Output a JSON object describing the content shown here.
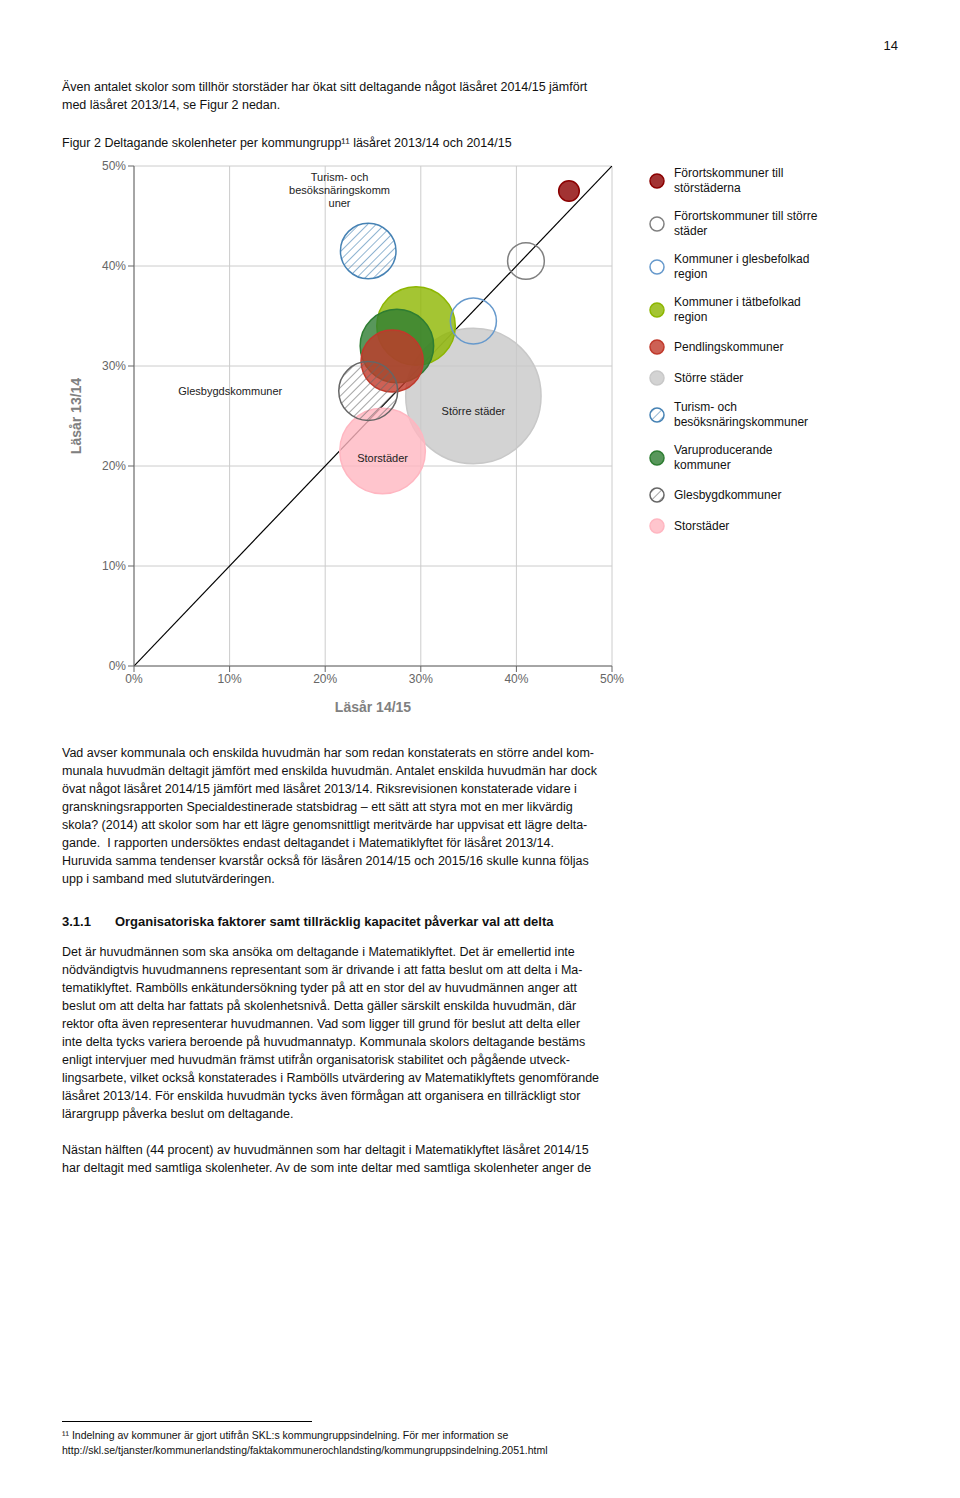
{
  "page_number": "14",
  "intro_text": "Även antalet skolor som tillhör storstäder har ökat sitt deltagande något läsåret 2014/15 jämfört\nmed läsåret 2013/14, se Figur 2 nedan.",
  "body1": "Vad avser kommunala och enskilda huvudmän har som redan konstaterats en större andel kom-\nmunala huvudmän deltagit jämfört med enskilda huvudmän. Antalet enskilda huvudmän har dock\növat något läsåret 2014/15 jämfört med läsåret 2013/14. Riksrevisionen konstaterade vidare i\ngranskningsrapporten Specialdestinerade statsbidrag – ett sätt att styra mot en mer likvärdig\nskola? (2014) att skolor som har ett lägre genomsnittligt meritvärde har uppvisat ett lägre delta-\ngande.  I rapporten undersöktes endast deltagandet i Matematiklyftet för läsåret 2013/14.\nHuruvida samma tendenser kvarstår också för läsåren 2014/15 och 2015/16 skulle kunna följas\nupp i samband med slututvärderingen.",
  "section_num": "3.1.1",
  "section_title": "Organisatoriska faktorer samt tillräcklig kapacitet påverkar val att delta",
  "body2": "Det är huvudmännen som ska ansöka om deltagande i Matematiklyftet. Det är emellertid inte\nnödvändigtvis huvudmannens representant som är drivande i att fatta beslut om att delta i Ma-\ntematiklyftet. Rambölls enkätundersökning tyder på att en stor del av huvudmännen anger att\nbeslut om att delta har fattats på skolenhetsnivå. Detta gäller särskilt enskilda huvudmän, där\nrektor ofta även representerar huvudmannen. Vad som ligger till grund för beslut att delta eller\ninte delta tycks variera beroende på huvudmannatyp. Kommunala skolors deltagande bestäms\nenligt intervjuer med huvudmän främst utifrån organisatorisk stabilitet och pågående utveck-\nlingsarbete, vilket också konstaterades i Rambölls utvärdering av Matematiklyftets genomförande\nläsåret 2013/14. För enskilda huvudmän tycks även förmågan att organisera en tillräckligt stor\nlärargrupp påverka beslut om deltagande.",
  "body3": "Nästan hälften (44 procent) av huvudmännen som har deltagit i Matematiklyftet läsåret 2014/15\nhar deltagit med samtliga skolenheter. Av de som inte deltar med samtliga skolenheter anger de",
  "footnote": "¹¹ Indelning av kommuner är gjort utifrån SKL:s kommungruppsindelning. För mer information se\nhttp://skl.se/tjanster/kommunerlandsting/faktakommunerochlandsting/kommungruppsindelning.2051.html",
  "chart_data": {
    "type": "bubble",
    "title": "Figur 2 Deltagande skolenheter per kommungrupp¹¹ läsåret 2013/14 och 2014/15",
    "xlabel": "Läsår 14/15",
    "ylabel": "Läsår 13/14",
    "xlim": [
      0.0,
      0.5
    ],
    "ylim": [
      0.0,
      0.5
    ],
    "xticks": [
      {
        "value": 0.0,
        "label": "0%"
      },
      {
        "value": 0.1,
        "label": "10%"
      },
      {
        "value": 0.2,
        "label": "20%"
      },
      {
        "value": 0.3,
        "label": "30%"
      },
      {
        "value": 0.4,
        "label": "40%"
      },
      {
        "value": 0.5,
        "label": "50%"
      }
    ],
    "yticks": [
      {
        "value": 0.0,
        "label": "0%"
      },
      {
        "value": 0.1,
        "label": "10%"
      },
      {
        "value": 0.2,
        "label": "20%"
      },
      {
        "value": 0.3,
        "label": "30%"
      },
      {
        "value": 0.4,
        "label": "40%"
      },
      {
        "value": 0.5,
        "label": "50%"
      }
    ],
    "grid": true,
    "series": [
      {
        "name": "Förortskommuner till\nstörstäderna",
        "color": "#8B0000",
        "marker": "circle",
        "x": 0.455,
        "y": 0.475,
        "size": 220
      },
      {
        "name": "Förortskommuner till större\nstäder",
        "color": "#808080",
        "marker": "open_circle",
        "x": 0.41,
        "y": 0.405,
        "size": 700
      },
      {
        "name": "Kommuner i glesbefolkad\nregion",
        "color": "#6699CC",
        "marker": "open_circle",
        "x": 0.355,
        "y": 0.345,
        "size": 1100
      },
      {
        "name": "Kommuner i tätbefolkad\nregion",
        "color": "#8DB600",
        "marker": "circle",
        "x": 0.295,
        "y": 0.34,
        "size": 3200
      },
      {
        "name": "Pendlingskommuner",
        "color": "#C0392B",
        "marker": "circle",
        "x": 0.27,
        "y": 0.305,
        "size": 2000
      },
      {
        "name": "Större städer",
        "color": "#C8C8C8",
        "marker": "circle",
        "x": 0.355,
        "y": 0.27,
        "size": 9500
      },
      {
        "name": "Turism- och\nbesöksnäringskommuner",
        "color": "#4682B4",
        "marker": "hatched_circle",
        "x": 0.245,
        "y": 0.415,
        "size": 1600
      },
      {
        "name": "Varuproducerande\nkommuner",
        "color": "#2E7D32",
        "marker": "circle",
        "x": 0.275,
        "y": 0.32,
        "size": 2800
      },
      {
        "name": "Glesbygdkommuner",
        "color": "#666666",
        "marker": "hatched_circle",
        "x": 0.245,
        "y": 0.275,
        "size": 1800
      },
      {
        "name": "Storstäder",
        "color": "#FFB6C1",
        "marker": "circle",
        "x": 0.26,
        "y": 0.215,
        "size": 3800
      }
    ],
    "diagonal": {
      "x": [
        0.0,
        0.5
      ],
      "y": [
        0.0,
        0.5
      ]
    },
    "annotations": [
      {
        "text": "Turism- och\nbesöksnäringskomm\nuner",
        "x": 0.215,
        "y": 0.455
      },
      {
        "text": "Glesbygdskommuner",
        "x": 0.155,
        "y": 0.275
      },
      {
        "text": "Större städer",
        "x": 0.355,
        "y": 0.255
      },
      {
        "text": "Storstäder",
        "x": 0.26,
        "y": 0.208
      }
    ]
  }
}
